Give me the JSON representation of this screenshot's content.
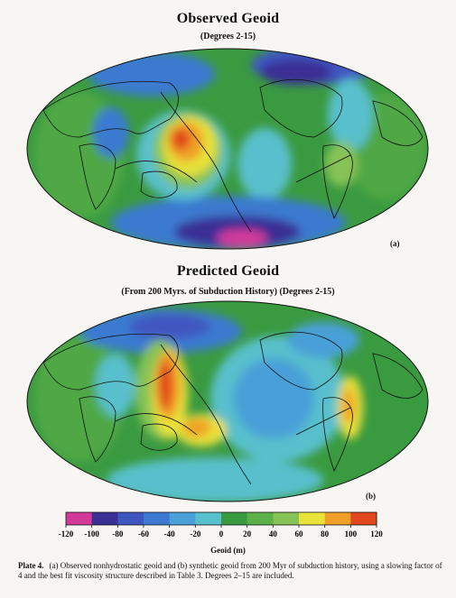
{
  "panel_a": {
    "title": "Observed Geoid",
    "subtitle": "(Degrees 2-15)",
    "label": "(a)"
  },
  "panel_b": {
    "title": "Predicted Geoid",
    "subtitle": "(From 200 Myrs. of Subduction History) (Degrees 2-15)",
    "label": "(b)"
  },
  "colorbar": {
    "title": "Geoid (m)",
    "ticks": [
      "-120",
      "-100",
      "-80",
      "-60",
      "-40",
      "-20",
      "0",
      "20",
      "40",
      "60",
      "80",
      "100",
      "120"
    ],
    "colors": [
      "#d23a9a",
      "#3a2f95",
      "#3f56c0",
      "#3b7ad0",
      "#4aa0d8",
      "#58c0cc",
      "#3a9a40",
      "#5bb04a",
      "#86c255",
      "#e8e23a",
      "#f0a028",
      "#e2461e"
    ]
  },
  "caption": {
    "plate": "Plate 4.",
    "text": "(a) Observed nonhydrostatic geoid and (b) synthetic geoid from 200 Myr of subduction history, using a slowing factor of 4 and the best fit viscosity structure described in Table 3. Degrees 2–15 are included."
  }
}
